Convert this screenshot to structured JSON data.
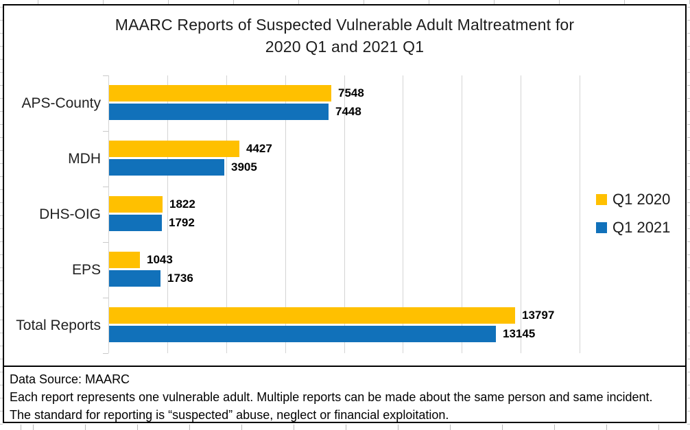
{
  "header": {
    "title_line1": "MAARC Reports of Suspected Vulnerable Adult Maltreatment for",
    "title_line2": "2020 Q1 and 2021 Q1"
  },
  "chart_data": {
    "type": "bar",
    "orientation": "horizontal",
    "title": "MAARC Reports of Suspected Vulnerable Adult Maltreatment for 2020 Q1 and 2021 Q1",
    "categories": [
      "APS-County",
      "MDH",
      "DHS-OIG",
      "EPS",
      "Total Reports"
    ],
    "series": [
      {
        "name": "Q1 2020",
        "color": "#FFC000",
        "values": [
          7548,
          4427,
          1822,
          1043,
          13797
        ]
      },
      {
        "name": "Q1 2021",
        "color": "#1171BA",
        "values": [
          7448,
          3905,
          1792,
          1736,
          13145
        ]
      }
    ],
    "xlim": [
      0,
      16000
    ],
    "gridline_step": 2000,
    "grid": true,
    "data_labels": true,
    "legend_position": "right",
    "colors": {
      "q1_2020": "#FFC000",
      "q1_2021": "#1171BA",
      "gridline": "#d4d4d4"
    }
  },
  "footer": {
    "lines": [
      "Data Source: MAARC",
      "Each report represents one vulnerable adult. Multiple reports can be made about the same person and same incident.",
      "The standard for reporting is “suspected” abuse, neglect or financial exploitation."
    ]
  }
}
